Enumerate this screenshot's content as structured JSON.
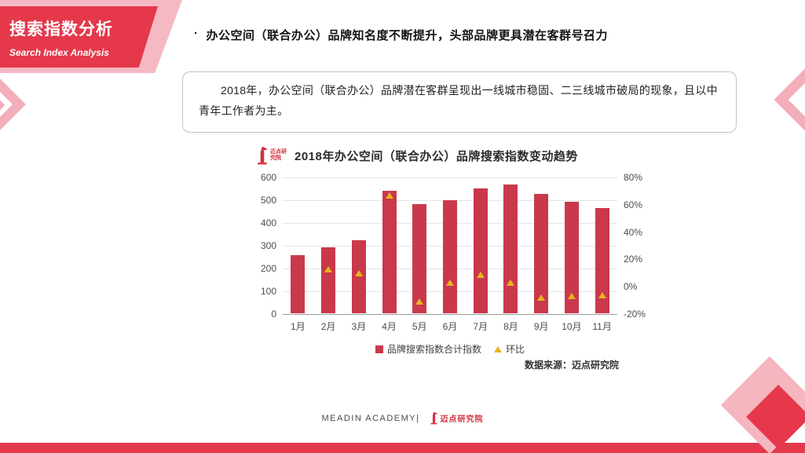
{
  "header": {
    "title": "搜索指数分析",
    "subtitle": "Search Index Analysis"
  },
  "headline": {
    "bullet": "·",
    "text": "办公空间（联合办公）品牌知名度不断提升，头部品牌更具潜在客群号召力"
  },
  "summary": {
    "text": "2018年，办公空间（联合办公）品牌潜在客群呈现出一线城市稳固、二三线城市破局的现象，且以中青年工作者为主。"
  },
  "chart": {
    "title": "2018年办公空间（联合办公）品牌搜索指数变动趋势",
    "logo_text": "迈点研究院",
    "legend_bars": "品牌搜索指数合计指数",
    "legend_rate": "环比",
    "source": "数据来源：迈点研究院"
  },
  "chart_data": {
    "type": "bar",
    "title": "2018年办公空间（联合办公）品牌搜索指数变动趋势",
    "categories": [
      "1月",
      "2月",
      "3月",
      "4月",
      "5月",
      "6月",
      "7月",
      "8月",
      "9月",
      "10月",
      "11月"
    ],
    "series": [
      {
        "name": "品牌搜索指数合计指数",
        "type": "bar",
        "axis": "left",
        "values": [
          255,
          290,
          320,
          538,
          479,
          497,
          548,
          565,
          524,
          490,
          462
        ]
      },
      {
        "name": "环比",
        "type": "point",
        "axis": "right",
        "unit": "%",
        "values": [
          null,
          13,
          10,
          67,
          -11,
          3,
          9,
          3,
          -8,
          -7,
          -6
        ]
      }
    ],
    "left_axis": {
      "min": 0,
      "max": 600,
      "step": 100
    },
    "right_axis": {
      "min": -20,
      "max": 80,
      "step": 20,
      "format": "percent"
    },
    "grid": true,
    "legend_position": "bottom",
    "colors": {
      "bar": "#c9394b",
      "point": "#e9b41f"
    }
  },
  "footer": {
    "academy": "MEADIN ACADEMY|",
    "logo_text": "迈点研究院"
  },
  "icons": {
    "logo": "meadin-monument-icon"
  },
  "colors": {
    "accent": "#e5384b",
    "pink": "#f4aeba",
    "bar": "#c9394b",
    "gold": "#e9b41f"
  }
}
